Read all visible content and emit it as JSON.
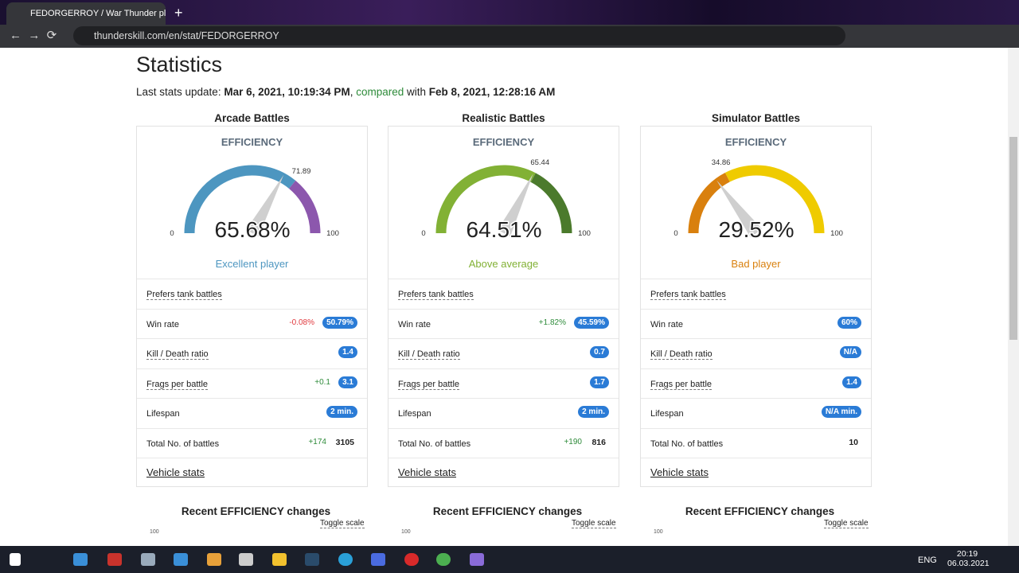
{
  "browser": {
    "tab_title": "FEDORGERROY / War Thunder pl",
    "url": "thunderskill.com/en/stat/FEDORGERROY"
  },
  "page": {
    "title": "Statistics",
    "update_prefix": "Last stats update:",
    "update_date": "Mar 6, 2021, 10:19:34 PM",
    "compared": "compared",
    "with": "with",
    "compared_date": "Feb 8, 2021, 12:28:16 AM"
  },
  "panels": [
    {
      "title": "Arcade Battles",
      "efficiency_label": "EFFICIENCY",
      "gauge": {
        "min": 0,
        "max": 100,
        "value": 65.68,
        "value_label": "65.68%",
        "marker": 71.89,
        "colors": [
          "#4d96c0",
          "#8c57ad"
        ]
      },
      "rating": "Excellent player",
      "rating_color": "#4d96c0",
      "prefers": "Prefers tank battles",
      "rows": [
        {
          "label": "Win rate",
          "change": "-0.08%",
          "badge": "50.79%"
        },
        {
          "label": "Kill / Death ratio",
          "badge": "1.4"
        },
        {
          "label": "Frags per battle",
          "change": "+0.1",
          "badge": "3.1"
        },
        {
          "label": "Lifespan",
          "badge": "2 min."
        },
        {
          "label": "Total No. of battles",
          "change": "+174",
          "value": "3105"
        }
      ],
      "vehicle_stats": "Vehicle stats",
      "recent_title": "Recent EFFICIENCY changes",
      "toggle": "Toggle scale",
      "recent_top": 100
    },
    {
      "title": "Realistic Battles",
      "efficiency_label": "EFFICIENCY",
      "gauge": {
        "min": 0,
        "max": 100,
        "value": 64.51,
        "value_label": "64.51%",
        "marker": 65.44,
        "colors": [
          "#82b135",
          "#4b7a2c"
        ]
      },
      "rating": "Above average",
      "rating_color": "#82b135",
      "prefers": "Prefers tank battles",
      "rows": [
        {
          "label": "Win rate",
          "change": "+1.82%",
          "badge": "45.59%"
        },
        {
          "label": "Kill / Death ratio",
          "badge": "0.7"
        },
        {
          "label": "Frags per battle",
          "badge": "1.7"
        },
        {
          "label": "Lifespan",
          "badge": "2 min."
        },
        {
          "label": "Total No. of battles",
          "change": "+190",
          "value": "816"
        }
      ],
      "vehicle_stats": "Vehicle stats",
      "recent_title": "Recent EFFICIENCY changes",
      "toggle": "Toggle scale",
      "recent_top": 100
    },
    {
      "title": "Simulator Battles",
      "efficiency_label": "EFFICIENCY",
      "gauge": {
        "min": 0,
        "max": 100,
        "value": 29.52,
        "value_label": "29.52%",
        "marker": 34.86,
        "colors": [
          "#d9800e",
          "#efcb00"
        ]
      },
      "rating": "Bad player",
      "rating_color": "#d9800e",
      "prefers": "Prefers tank battles",
      "rows": [
        {
          "label": "Win rate",
          "badge": "60%"
        },
        {
          "label": "Kill / Death ratio",
          "badge": "N/A"
        },
        {
          "label": "Frags per battle",
          "badge": "1.4"
        },
        {
          "label": "Lifespan",
          "badge": "N/A min."
        },
        {
          "label": "Total No. of battles",
          "value": "10"
        }
      ],
      "vehicle_stats": "Vehicle stats",
      "recent_title": "Recent EFFICIENCY changes",
      "toggle": "Toggle scale",
      "recent_top": 100
    }
  ],
  "taskbar": {
    "language": "ENG",
    "time": "20:19",
    "date": "06.03.2021"
  }
}
